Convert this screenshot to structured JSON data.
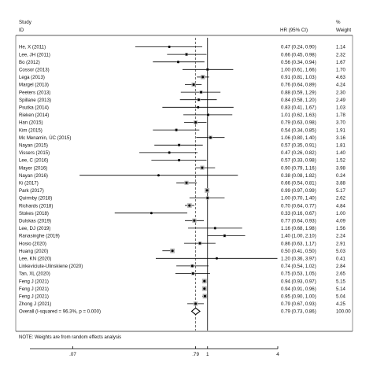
{
  "header": {
    "col_study": [
      "Study",
      "ID"
    ],
    "col_hr": "HR (95% CI)",
    "col_weight": [
      "%",
      "Weight"
    ]
  },
  "footnote": "NOTE: Weights are from random effects analysis",
  "chart_data": {
    "type": "scatter",
    "subtype": "forest-plot",
    "scale": "log",
    "x_ticks": [
      {
        "value": 0.07,
        "label": ".07"
      },
      {
        "value": 0.79,
        "label": ".79"
      },
      {
        "value": 1,
        "label": "1"
      },
      {
        "value": 4,
        "label": "4"
      }
    ],
    "xlim": [
      0.03,
      4.0
    ],
    "null_line": 1,
    "pooled_line": 0.79,
    "studies": [
      {
        "id": "He, X (2011)",
        "hr": 0.47,
        "lo": 0.24,
        "hi": 0.9,
        "ci_text": "0.47 (0.24, 0.90)",
        "weight": 1.14
      },
      {
        "id": "Lee, JH (2011)",
        "hr": 0.66,
        "lo": 0.45,
        "hi": 0.98,
        "ci_text": "0.66 (0.45, 0.98)",
        "weight": 2.32
      },
      {
        "id": "Bo (2012)",
        "hr": 0.56,
        "lo": 0.34,
        "hi": 0.94,
        "ci_text": "0.56 (0.34, 0.94)",
        "weight": 1.67
      },
      {
        "id": "Cossor (2013)",
        "hr": 1.0,
        "lo": 0.61,
        "hi": 1.66,
        "ci_text": "1.00 (0.61, 1.66)",
        "weight": 1.7
      },
      {
        "id": "Lega (2013)",
        "hr": 0.91,
        "lo": 0.81,
        "hi": 1.03,
        "ci_text": "0.91 (0.81, 1.03)",
        "weight": 4.63
      },
      {
        "id": "Margel (2013)",
        "hr": 0.76,
        "lo": 0.64,
        "hi": 0.89,
        "ci_text": "0.76 (0.64, 0.89)",
        "weight": 4.24
      },
      {
        "id": "Peeters (2013)",
        "hr": 0.88,
        "lo": 0.59,
        "hi": 1.29,
        "ci_text": "0.88 (0.59, 1.29)",
        "weight": 2.3
      },
      {
        "id": "Spillane (2013)",
        "hr": 0.84,
        "lo": 0.58,
        "hi": 1.2,
        "ci_text": "0.84 (0.58, 1.20)",
        "weight": 2.49
      },
      {
        "id": "Psutka (2014)",
        "hr": 0.83,
        "lo": 0.41,
        "hi": 1.67,
        "ci_text": "0.83 (0.41, 1.67)",
        "weight": 1.03
      },
      {
        "id": "Rieken (2014)",
        "hr": 1.01,
        "lo": 0.62,
        "hi": 1.63,
        "ci_text": "1.01 (0.62, 1.63)",
        "weight": 1.78
      },
      {
        "id": "Han (2015)",
        "hr": 0.79,
        "lo": 0.63,
        "hi": 0.98,
        "ci_text": "0.79 (0.63, 0.98)",
        "weight": 3.7
      },
      {
        "id": "Kim (2015)",
        "hr": 0.54,
        "lo": 0.34,
        "hi": 0.85,
        "ci_text": "0.54 (0.34, 0.85)",
        "weight": 1.91
      },
      {
        "id": "Mc Menamin, ÚC (2015)",
        "hr": 1.06,
        "lo": 0.8,
        "hi": 1.4,
        "ci_text": "1.06 (0.80, 1.40)",
        "weight": 3.16
      },
      {
        "id": "Nayan (2015)",
        "hr": 0.57,
        "lo": 0.35,
        "hi": 0.91,
        "ci_text": "0.57 (0.35, 0.91)",
        "weight": 1.81
      },
      {
        "id": "Vissers (2015)",
        "hr": 0.47,
        "lo": 0.26,
        "hi": 0.82,
        "ci_text": "0.47 (0.26, 0.82)",
        "weight": 1.4
      },
      {
        "id": "Lee, C (2016)",
        "hr": 0.57,
        "lo": 0.33,
        "hi": 0.98,
        "ci_text": "0.57 (0.33, 0.98)",
        "weight": 1.52
      },
      {
        "id": "Mayer (2016)",
        "hr": 0.9,
        "lo": 0.79,
        "hi": 1.16,
        "ci_text": "0.90 (0.79, 1.16)",
        "weight": 3.98
      },
      {
        "id": "Nayan (2016)",
        "hr": 0.38,
        "lo": 0.08,
        "hi": 1.82,
        "ci_text": "0.38 (0.08, 1.82)",
        "weight": 0.24
      },
      {
        "id": "Ki (2017)",
        "hr": 0.66,
        "lo": 0.54,
        "hi": 0.81,
        "ci_text": "0.66 (0.54, 0.81)",
        "weight": 3.88
      },
      {
        "id": "Park (2017)",
        "hr": 0.99,
        "lo": 0.97,
        "hi": 0.99,
        "ci_text": "0.99 (0.97, 0.99)",
        "weight": 5.17
      },
      {
        "id": "Quirmby (2018)",
        "hr": 1.0,
        "lo": 0.7,
        "hi": 1.4,
        "ci_text": "1.00 (0.70, 1.40)",
        "weight": 2.62
      },
      {
        "id": "Richards (2018)",
        "hr": 0.7,
        "lo": 0.64,
        "hi": 0.77,
        "ci_text": "0.70 (0.64, 0.77)",
        "weight": 4.84
      },
      {
        "id": "Stokes (2018)",
        "hr": 0.33,
        "lo": 0.16,
        "hi": 0.67,
        "ci_text": "0.33 (0.16, 0.67)",
        "weight": 1.0
      },
      {
        "id": "Dulskas (2019)",
        "hr": 0.77,
        "lo": 0.64,
        "hi": 0.93,
        "ci_text": "0.77 (0.64, 0.93)",
        "weight": 4.09
      },
      {
        "id": "Lee, DJ (2019)",
        "hr": 1.16,
        "lo": 0.68,
        "hi": 1.98,
        "ci_text": "1.16 (0.68, 1.98)",
        "weight": 1.56
      },
      {
        "id": "Ranasinghe (2019)",
        "hr": 1.4,
        "lo": 1.0,
        "hi": 2.1,
        "ci_text": "1.40 (1.00, 2.10)",
        "weight": 2.24
      },
      {
        "id": "Hosio (2020)",
        "hr": 0.86,
        "lo": 0.63,
        "hi": 1.17,
        "ci_text": "0.86 (0.63, 1.17)",
        "weight": 2.91
      },
      {
        "id": "Huang (2020)",
        "hr": 0.5,
        "lo": 0.41,
        "hi": 0.5,
        "ci_text": "0.50 (0.41, 0.50)",
        "weight": 5.03
      },
      {
        "id": "Lee, KN (2020)",
        "hr": 1.2,
        "lo": 0.36,
        "hi": 3.97,
        "ci_text": "1.20 (0.36, 3.97)",
        "weight": 0.41
      },
      {
        "id": "Linkeviciute-Ulinskiene (2020)",
        "hr": 0.74,
        "lo": 0.54,
        "hi": 1.02,
        "ci_text": "0.74 (0.54, 1.02)",
        "weight": 2.84
      },
      {
        "id": "Tan, XL (2020)",
        "hr": 0.75,
        "lo": 0.53,
        "hi": 1.05,
        "ci_text": "0.75 (0.53, 1.05)",
        "weight": 2.65
      },
      {
        "id": "Feng J (2021)",
        "hr": 0.94,
        "lo": 0.93,
        "hi": 0.97,
        "ci_text": "0.94 (0.93, 0.97)",
        "weight": 5.15
      },
      {
        "id": "Feng J (2021)",
        "hr": 0.94,
        "lo": 0.91,
        "hi": 0.96,
        "ci_text": "0.94 (0.91, 0.96)",
        "weight": 5.14
      },
      {
        "id": "Feng J (2021)",
        "hr": 0.95,
        "lo": 0.9,
        "hi": 1.0,
        "ci_text": "0.95 (0.90, 1.00)",
        "weight": 5.04
      },
      {
        "id": "Zhong J (2021)",
        "hr": 0.79,
        "lo": 0.67,
        "hi": 0.93,
        "ci_text": "0.79 (0.67, 0.93)",
        "weight": 4.25
      }
    ],
    "overall": {
      "id": "Overall  (I-squared = 96.3%, p = 0.000)",
      "hr": 0.79,
      "lo": 0.73,
      "hi": 0.86,
      "ci_text": "0.79 (0.73, 0.86)",
      "weight_text": "100.00"
    }
  }
}
